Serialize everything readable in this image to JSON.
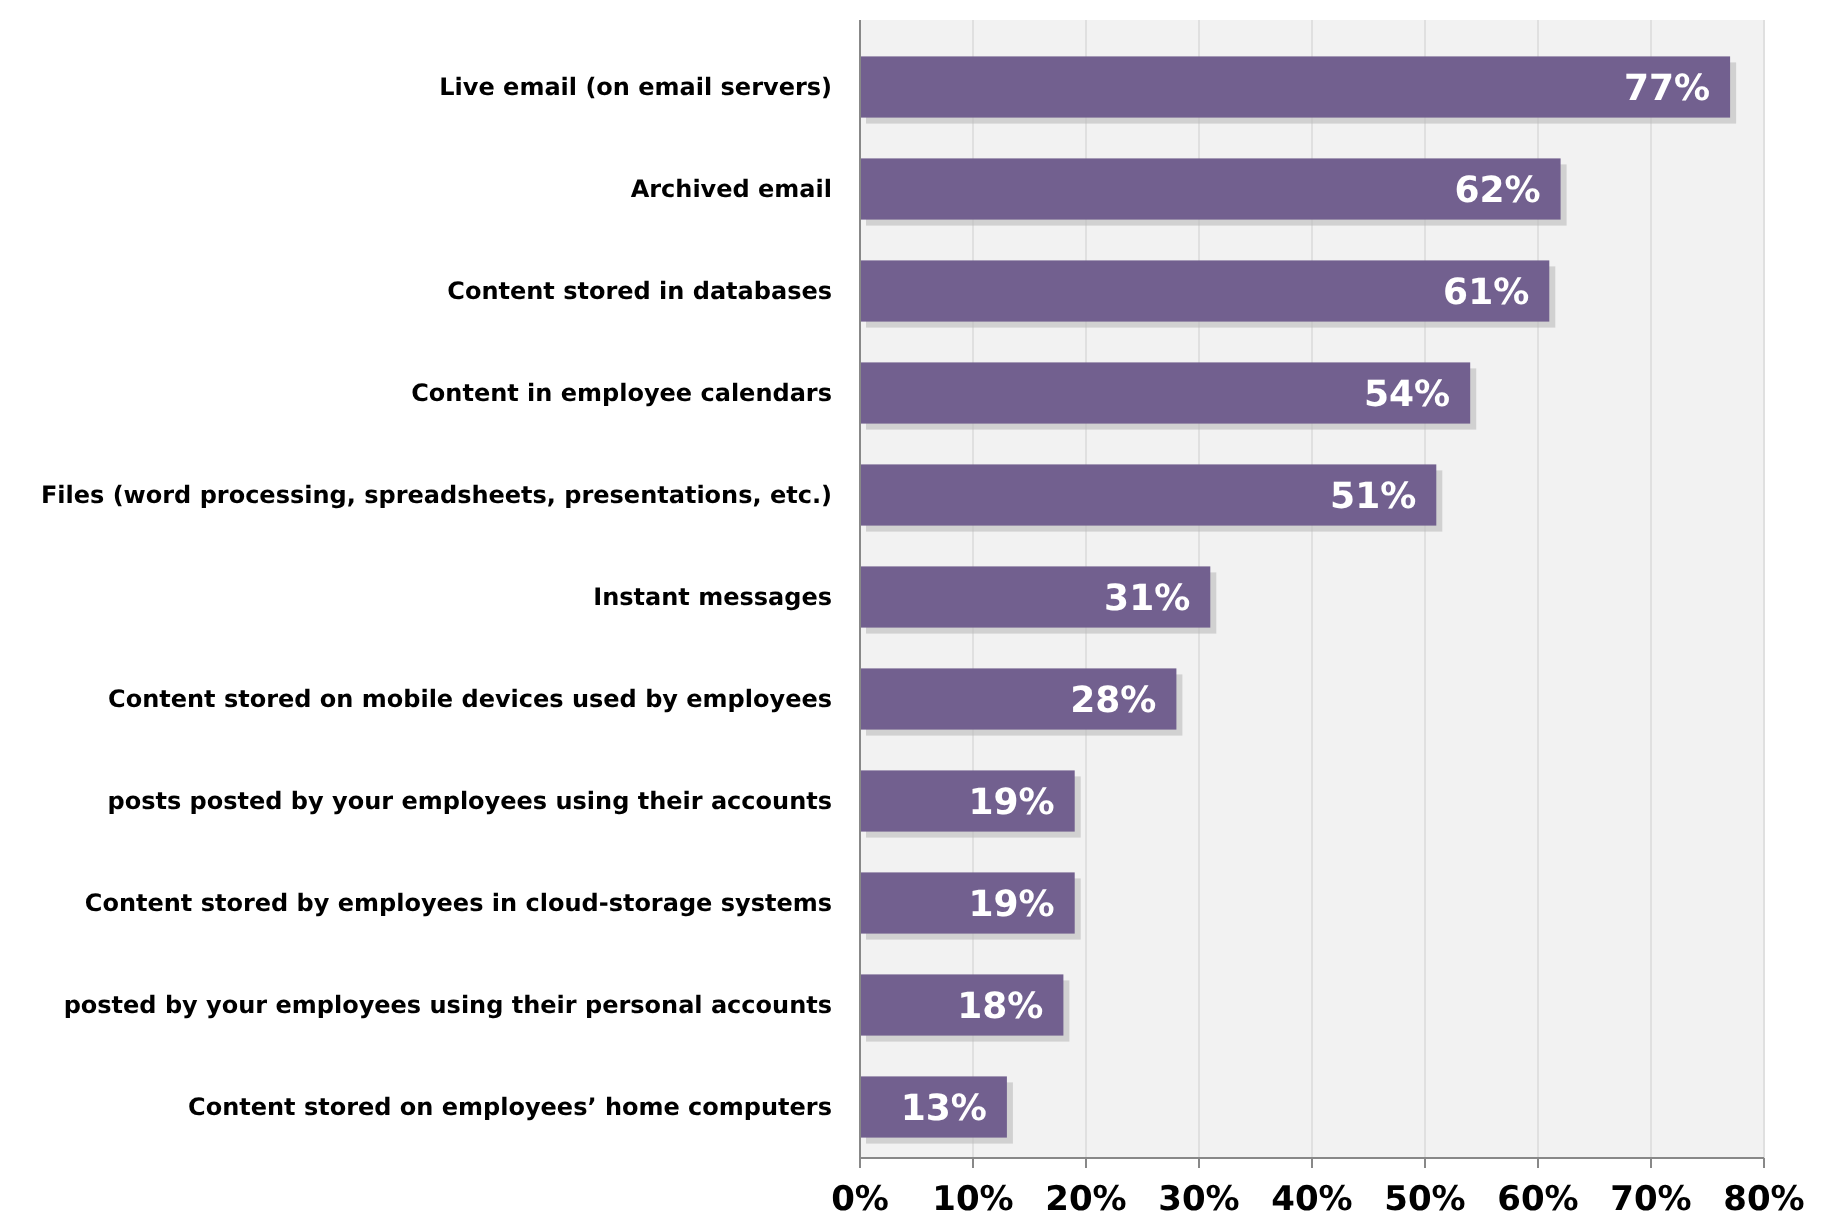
{
  "chart_data": {
    "type": "bar",
    "orientation": "horizontal",
    "categories": [
      "Live email (on email servers)",
      "Archived email",
      "Content stored in databases",
      "Content in employee calendars",
      "Files (word processing, spreadsheets, presentations, etc.)",
      "Instant messages",
      "Content stored on mobile devices used by employees",
      "posts posted by your employees using their accounts",
      "Content stored by employees in cloud-storage systems",
      "posted by your employees using their personal accounts",
      "Content stored on employees’ home computers"
    ],
    "values": [
      77,
      62,
      61,
      54,
      51,
      31,
      28,
      19,
      19,
      18,
      13
    ],
    "value_labels": [
      "77%",
      "62%",
      "61%",
      "54%",
      "51%",
      "31%",
      "28%",
      "19%",
      "19%",
      "18%",
      "13%"
    ],
    "color": "#72608f",
    "xlim": [
      0,
      80
    ],
    "xticks": [
      {
        "value": 0,
        "label": "0%"
      },
      {
        "value": 10,
        "label": "10%"
      },
      {
        "value": 20,
        "label": "20%"
      },
      {
        "value": 30,
        "label": "30%"
      },
      {
        "value": 40,
        "label": "40%"
      },
      {
        "value": 50,
        "label": "50%"
      },
      {
        "value": 60,
        "label": "60%"
      },
      {
        "value": 70,
        "label": "70%"
      },
      {
        "value": 80,
        "label": "80%"
      }
    ],
    "grid": "x"
  }
}
